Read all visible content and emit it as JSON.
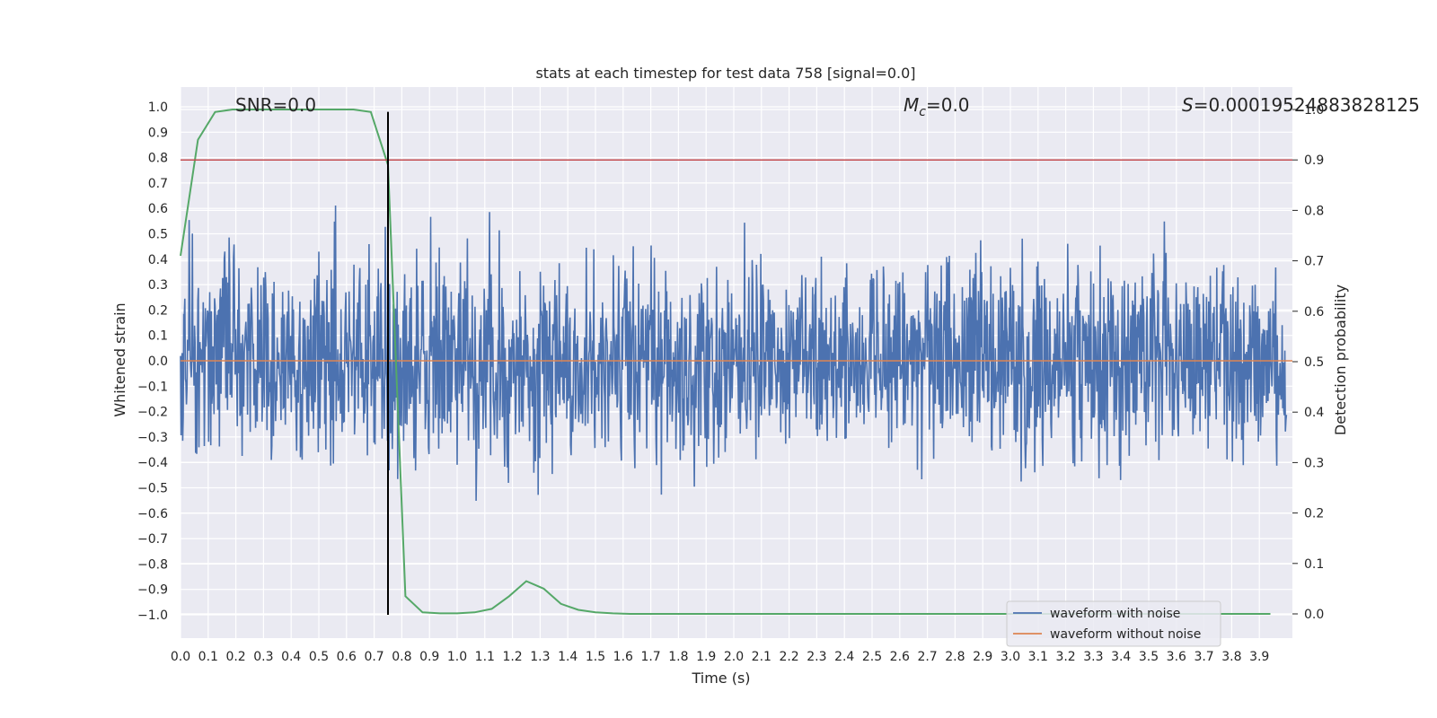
{
  "chart_data": {
    "type": "line",
    "title": "stats at each timestep for test data 758 [signal=0.0]",
    "xlabel": "Time (s)",
    "ylabel": "Whitened strain",
    "y2label": "Detection probability",
    "xlim": [
      0.0,
      4.0
    ],
    "ylim": [
      -1.1,
      1.05
    ],
    "y2lim": [
      -0.05,
      1.0
    ],
    "xticks": [
      "0.0",
      "0.1",
      "0.2",
      "0.3",
      "0.4",
      "0.5",
      "0.6",
      "0.7",
      "0.8",
      "0.9",
      "1.0",
      "1.1",
      "1.2",
      "1.3",
      "1.4",
      "1.5",
      "1.6",
      "1.7",
      "1.8",
      "1.9",
      "2.0",
      "2.1",
      "2.2",
      "2.3",
      "2.4",
      "2.5",
      "2.6",
      "2.7",
      "2.8",
      "2.9",
      "3.0",
      "3.1",
      "3.2",
      "3.3",
      "3.4",
      "3.5",
      "3.6",
      "3.7",
      "3.8",
      "3.9"
    ],
    "yticks": [
      "−1.0",
      "−0.9",
      "−0.8",
      "−0.7",
      "−0.6",
      "−0.5",
      "−0.4",
      "−0.3",
      "−0.2",
      "−0.1",
      "0.0",
      "0.1",
      "0.2",
      "0.3",
      "0.4",
      "0.5",
      "0.6",
      "0.7",
      "0.8",
      "0.9",
      "1.0"
    ],
    "y2ticks": [
      "0.0",
      "0.1",
      "0.2",
      "0.3",
      "0.4",
      "0.5",
      "0.6",
      "0.7",
      "0.8",
      "0.9",
      "1.0"
    ],
    "grid": true,
    "legend_position": "bottom-right",
    "annotations": {
      "snr": "SNR=0.0",
      "mc_symbol": "M",
      "mc_sub": "c",
      "mc_value": "=0.0",
      "s_symbol": "S",
      "s_value": "=0.00019524883828125"
    },
    "series": [
      {
        "name": "waveform with noise",
        "color": "#4c72b0",
        "axis": "left",
        "kind": "noise",
        "sample_rate": 512,
        "amplitude_sd": 0.28
      },
      {
        "name": "waveform without noise",
        "color": "#dd8452",
        "axis": "left",
        "kind": "constant",
        "value": 0.0
      },
      {
        "name": "detection probability",
        "color": "#55a868",
        "axis": "right",
        "x": [
          0.0,
          0.063,
          0.125,
          0.188,
          0.25,
          0.313,
          0.375,
          0.438,
          0.5,
          0.563,
          0.625,
          0.688,
          0.75,
          0.813,
          0.875,
          0.938,
          1.0,
          1.063,
          1.125,
          1.188,
          1.25,
          1.313,
          1.375,
          1.438,
          1.5,
          1.563,
          1.625,
          1.688,
          1.75,
          2.0,
          2.5,
          3.0,
          3.5,
          3.94
        ],
        "values": [
          0.71,
          0.94,
          0.995,
          1.0,
          1.0,
          1.0,
          1.0,
          1.0,
          1.0,
          1.0,
          1.0,
          0.995,
          0.89,
          0.035,
          0.003,
          0.001,
          0.001,
          0.003,
          0.01,
          0.035,
          0.065,
          0.05,
          0.02,
          0.008,
          0.003,
          0.001,
          0.0,
          0.0,
          0.0,
          0.0,
          0.0,
          0.0,
          0.0,
          0.0
        ]
      }
    ],
    "hlines": [
      {
        "name": "threshold",
        "axis": "right",
        "value": 0.9,
        "color": "#c44e52"
      }
    ],
    "vlines": [
      {
        "name": "detection time",
        "x": 0.75,
        "y_from": -1.0,
        "y_to": 0.98,
        "color": "#000000"
      }
    ]
  }
}
